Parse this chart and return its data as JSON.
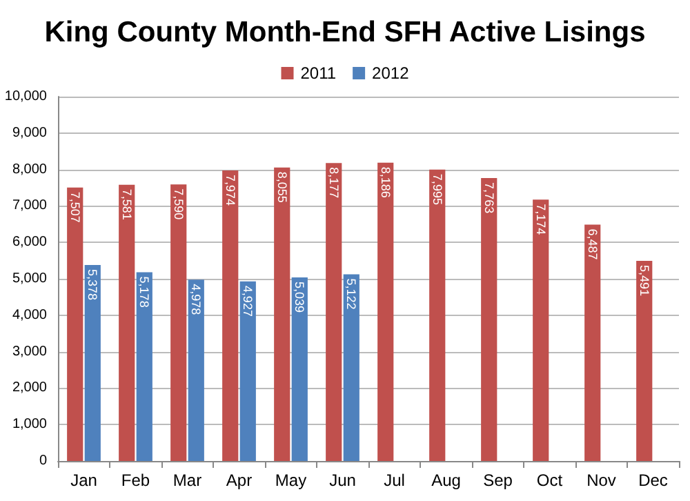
{
  "chart_data": {
    "type": "bar",
    "title": "King County Month-End SFH Active Lisings",
    "categories": [
      "Jan",
      "Feb",
      "Mar",
      "Apr",
      "May",
      "Jun",
      "Jul",
      "Aug",
      "Sep",
      "Oct",
      "Nov",
      "Dec"
    ],
    "series": [
      {
        "name": "2011",
        "color": "#c0504d",
        "values": [
          7507,
          7581,
          7590,
          7974,
          8055,
          8177,
          8186,
          7995,
          7763,
          7174,
          6487,
          5491
        ],
        "value_labels": [
          "7,507",
          "7,581",
          "7,590",
          "7,974",
          "8,055",
          "8,177",
          "8,186",
          "7,995",
          "7,763",
          "7,174",
          "6,487",
          "5,491"
        ]
      },
      {
        "name": "2012",
        "color": "#4f81bd",
        "values": [
          5378,
          5178,
          4978,
          4927,
          5039,
          5122,
          null,
          null,
          null,
          null,
          null,
          null
        ],
        "value_labels": [
          "5,378",
          "5,178",
          "4,978",
          "4,927",
          "5,039",
          "5,122",
          null,
          null,
          null,
          null,
          null,
          null
        ]
      }
    ],
    "ylim": [
      0,
      10000
    ],
    "yticks": [
      {
        "value": 0,
        "label": "0"
      },
      {
        "value": 1000,
        "label": "1,000"
      },
      {
        "value": 2000,
        "label": "2,000"
      },
      {
        "value": 3000,
        "label": "3,000"
      },
      {
        "value": 4000,
        "label": "4,000"
      },
      {
        "value": 5000,
        "label": "5,000"
      },
      {
        "value": 6000,
        "label": "6,000"
      },
      {
        "value": 7000,
        "label": "7,000"
      },
      {
        "value": 8000,
        "label": "8,000"
      },
      {
        "value": 9000,
        "label": "9,000"
      },
      {
        "value": 10000,
        "label": "10,000"
      }
    ],
    "grid": "y",
    "legend": "top"
  }
}
